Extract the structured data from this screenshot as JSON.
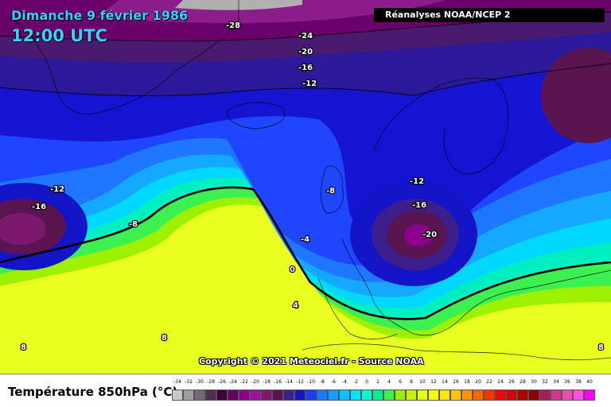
{
  "header": {
    "date": "Dimanche 9 février 1986",
    "time": "12:00 UTC",
    "source": "Réanalyses NOAA/NCEP 2"
  },
  "footer": {
    "copyright": "Copyright © 2021 Meteociel.fr - Source NOAA",
    "legend_title": "Température 850hPa (°C)"
  },
  "map": {
    "isotherm_labels": [
      "-28",
      "-24",
      "-20",
      "-16",
      "-12",
      "-12",
      "-16",
      "-8",
      "-8",
      "-12",
      "-16",
      "-20",
      "-4",
      "0",
      "4",
      "8",
      "8",
      "8"
    ]
  },
  "scale": {
    "ticks": [
      "-34",
      "-32",
      "-30",
      "-28",
      "-26",
      "-24",
      "-22",
      "-20",
      "-18",
      "-16",
      "-14",
      "-12",
      "-10",
      "-8",
      "-6",
      "-4",
      "-2",
      "0",
      "2",
      "4",
      "6",
      "8",
      "10",
      "12",
      "14",
      "16",
      "18",
      "20",
      "22",
      "24",
      "26",
      "28",
      "30",
      "32",
      "34",
      "36",
      "38",
      "40"
    ],
    "colors": [
      "#c8c8c8",
      "#a0a0a0",
      "#786878",
      "#503050",
      "#3c003c",
      "#640064",
      "#8c008c",
      "#a010a0",
      "#7c1870",
      "#5a1450",
      "#3c1e8c",
      "#1414c8",
      "#1e3cff",
      "#1e78ff",
      "#14a0ff",
      "#00c8ff",
      "#00e6ff",
      "#00ffd2",
      "#00f08c",
      "#3cf050",
      "#96f000",
      "#c8f000",
      "#e6ff00",
      "#ffff00",
      "#ffe600",
      "#ffc800",
      "#ff9600",
      "#ff6400",
      "#ff3200",
      "#ff0000",
      "#dc0000",
      "#b40000",
      "#8c0000",
      "#a0205a",
      "#c83c8c",
      "#e650b4",
      "#ff50dc",
      "#ff00ff"
    ]
  }
}
